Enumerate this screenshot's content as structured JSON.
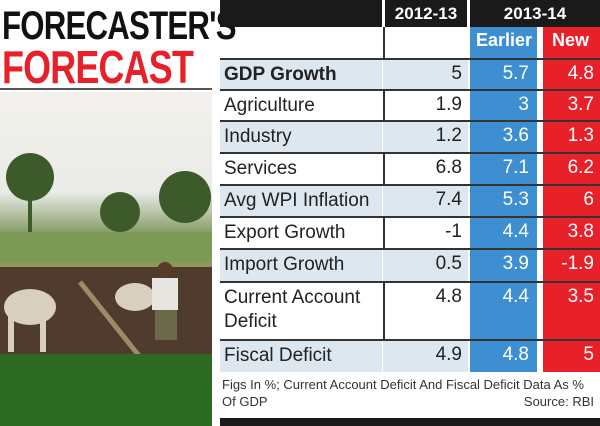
{
  "title_line1": "FORECASTER'S",
  "title_line2": "FORECAST",
  "colors": {
    "title_red": "#e8202a",
    "earlier_blue": "#3d8fd1",
    "new_red": "#e8202a",
    "header_black": "#1a1a1a"
  },
  "chart_data": {
    "type": "table",
    "column_groups": [
      "2012-13",
      "2013-14"
    ],
    "columns": [
      "Earlier",
      "New"
    ],
    "rows": [
      {
        "label": "GDP Growth",
        "v2012": "5",
        "earlier": "5.7",
        "new": "4.8"
      },
      {
        "label": "Agriculture",
        "v2012": "1.9",
        "earlier": "3",
        "new": "3.7"
      },
      {
        "label": "Industry",
        "v2012": "1.2",
        "earlier": "3.6",
        "new": "1.3"
      },
      {
        "label": "Services",
        "v2012": "6.8",
        "earlier": "7.1",
        "new": "6.2"
      },
      {
        "label": "Avg WPI Inflation",
        "v2012": "7.4",
        "earlier": "5.3",
        "new": "6"
      },
      {
        "label": "Export Growth",
        "v2012": "-1",
        "earlier": "4.4",
        "new": "3.8"
      },
      {
        "label": "Import Growth",
        "v2012": "0.5",
        "earlier": "3.9",
        "new": "-1.9"
      },
      {
        "label": "Current Account Deficit",
        "v2012": "4.8",
        "earlier": "4.4",
        "new": "3.5"
      },
      {
        "label": "Fiscal Deficit",
        "v2012": "4.9",
        "earlier": "4.8",
        "new": "5"
      }
    ],
    "note": "Figs In %; Current Account Deficit And Fiscal Deficit Data As % Of GDP",
    "source": "Source: RBI"
  }
}
